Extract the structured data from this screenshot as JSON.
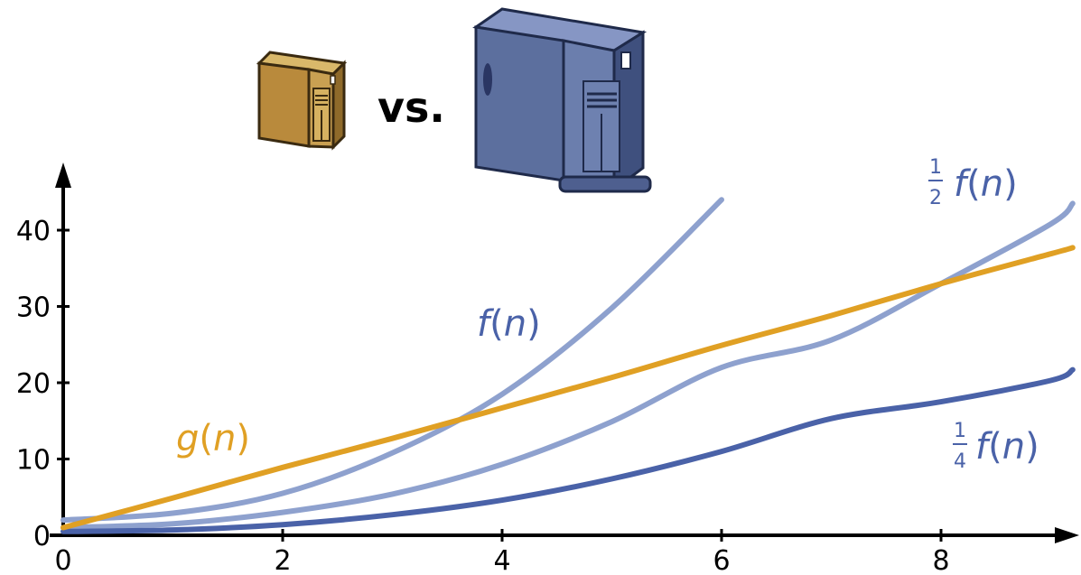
{
  "vs_text": "vs.",
  "icons": {
    "small_server": "small-server-tower-icon",
    "large_server": "large-server-tower-icon"
  },
  "colors": {
    "g": "#E0A024",
    "f_light": "#8EA1CE",
    "f_dark": "#4A62A8",
    "small_server_body": "#B98A3C",
    "large_server_body": "#5C6F9E"
  },
  "labels": {
    "f": {
      "name": "f",
      "paren_open": "(",
      "arg": "n",
      "paren_close": ")"
    },
    "g": {
      "name": "g",
      "paren_open": "(",
      "arg": "n",
      "paren_close": ")"
    },
    "half_f": {
      "num": "1",
      "den": "2",
      "name": "f",
      "paren_open": "(",
      "arg": "n",
      "paren_close": ")"
    },
    "quarter_f": {
      "num": "1",
      "den": "4",
      "name": "f",
      "paren_open": "(",
      "arg": "n",
      "paren_close": ")"
    }
  },
  "chart_data": {
    "type": "line",
    "title": "",
    "xlabel": "",
    "ylabel": "",
    "xlim": [
      0,
      9.2
    ],
    "ylim": [
      0,
      45
    ],
    "x_ticks": [
      "0",
      "2",
      "4",
      "6",
      "8"
    ],
    "y_ticks": [
      "0",
      "10",
      "20",
      "30",
      "40"
    ],
    "x": [
      0,
      1,
      2,
      3,
      4,
      5,
      6,
      6.6,
      7,
      8,
      9,
      9.2
    ],
    "series": [
      {
        "key": "f",
        "label_key": "f",
        "color": "f_light",
        "values": [
          2,
          2.9,
          5.5,
          10.8,
          18.5,
          29.8,
          44,
          null,
          null,
          null,
          null,
          null
        ]
      },
      {
        "key": "half_f",
        "label_key": "half_f",
        "color": "f_light",
        "values": [
          1,
          1.5,
          3.0,
          5.4,
          9.3,
          14.9,
          22.0,
          null,
          25.6,
          33.0,
          40.8,
          43.5
        ]
      },
      {
        "key": "quarter_f",
        "label_key": "quarter_f",
        "color": "f_dark",
        "values": [
          0.5,
          0.7,
          1.4,
          2.7,
          4.6,
          7.4,
          11.0,
          null,
          15.3,
          17.5,
          20.3,
          21.7
        ]
      },
      {
        "key": "g",
        "label_key": "g",
        "color": "g",
        "values": [
          1,
          4.9,
          8.9,
          12.7,
          16.7,
          20.7,
          24.9,
          null,
          28.8,
          33.0,
          36.9,
          37.7
        ]
      }
    ]
  }
}
